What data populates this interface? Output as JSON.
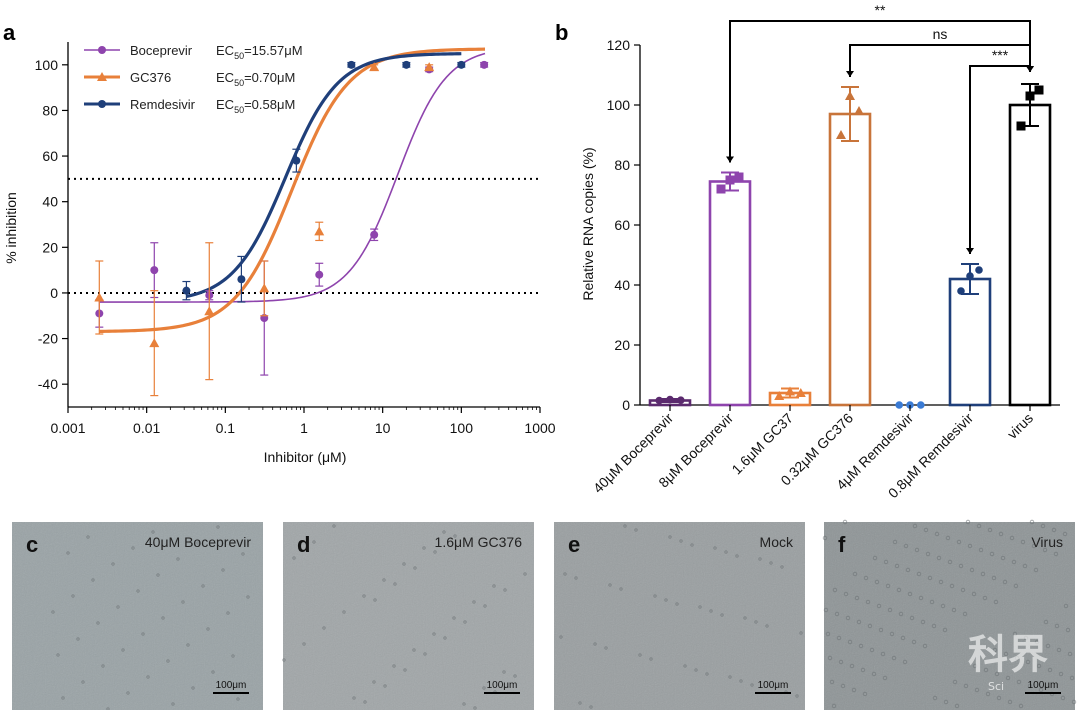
{
  "panel_a": {
    "letter": "a",
    "colors": {
      "boceprevir": "#8e44ad",
      "gc376": "#e8803a",
      "remdesivir": "#1f3f7a"
    },
    "legend": [
      {
        "key": "boceprevir",
        "name": "Boceprevir",
        "ec_prefix": "EC",
        "ec_sub": "50",
        "ec_value": "=15.57μM"
      },
      {
        "key": "gc376",
        "name": "GC376",
        "ec_prefix": "EC",
        "ec_sub": "50",
        "ec_value": "=0.70μM"
      },
      {
        "key": "remdesivir",
        "name": "Remdesivir",
        "ec_prefix": "EC",
        "ec_sub": "50",
        "ec_value": "=0.58μM"
      }
    ],
    "chart_data": {
      "type": "scatter",
      "xlabel": "Inhibitor (μM)",
      "ylabel": "% inhibition",
      "xscale": "log",
      "xlim": [
        0.001,
        1000
      ],
      "ylim": [
        -50,
        110
      ],
      "x_ticks": [
        "0.001",
        "0.01",
        "0.1",
        "1",
        "10",
        "100",
        "1000"
      ],
      "y_ticks": [
        "-40",
        "-20",
        "0",
        "20",
        "40",
        "60",
        "80",
        "100"
      ],
      "reference_lines": [
        50,
        0
      ],
      "series": [
        {
          "name": "Boceprevir",
          "key": "boceprevir",
          "marker": "circle",
          "curve": {
            "bottom": -4,
            "top": 108,
            "ec50": 15.57,
            "hill": 1.4,
            "x_range": [
              0.0025,
              200
            ]
          },
          "points": [
            {
              "x": 0.0025,
              "y": -9,
              "err": 6
            },
            {
              "x": 0.0125,
              "y": 10,
              "err": 12
            },
            {
              "x": 0.0625,
              "y": -1,
              "err": 2
            },
            {
              "x": 0.3125,
              "y": -11,
              "err": 25
            },
            {
              "x": 1.5625,
              "y": 8,
              "err": 5
            },
            {
              "x": 7.8,
              "y": 25.5,
              "err": 2.5
            },
            {
              "x": 39,
              "y": 98,
              "err": 1
            },
            {
              "x": 195,
              "y": 100,
              "err": 1
            }
          ]
        },
        {
          "name": "GC376",
          "key": "gc376",
          "marker": "triangle",
          "curve": {
            "bottom": -17,
            "top": 107,
            "ec50": 0.7,
            "hill": 1.2,
            "x_range": [
              0.0025,
              200
            ]
          },
          "points": [
            {
              "x": 0.0025,
              "y": -2,
              "err": 16
            },
            {
              "x": 0.0125,
              "y": -22,
              "err": 23
            },
            {
              "x": 0.0625,
              "y": -8,
              "err": 30
            },
            {
              "x": 0.3125,
              "y": 2,
              "err": 12
            },
            {
              "x": 1.5625,
              "y": 27,
              "err": 4
            },
            {
              "x": 7.8,
              "y": 99,
              "err": 1
            },
            {
              "x": 39,
              "y": 99,
              "err": 1
            }
          ]
        },
        {
          "name": "Remdesivir",
          "key": "remdesivir",
          "marker": "circle",
          "curve": {
            "bottom": -4,
            "top": 105,
            "ec50": 0.58,
            "hill": 1.3,
            "x_range": [
              0.032,
              100
            ]
          },
          "points": [
            {
              "x": 0.032,
              "y": 1,
              "err": 4
            },
            {
              "x": 0.16,
              "y": 6,
              "err": 10
            },
            {
              "x": 0.8,
              "y": 58,
              "err": 5
            },
            {
              "x": 4,
              "y": 100,
              "err": 1
            },
            {
              "x": 20,
              "y": 100,
              "err": 1
            },
            {
              "x": 100,
              "y": 100,
              "err": 1
            }
          ]
        }
      ]
    }
  },
  "panel_b": {
    "letter": "b",
    "chart_data": {
      "type": "bar",
      "ylabel": "Relative RNA copies (%)",
      "ylim": [
        0,
        120
      ],
      "y_ticks": [
        "0",
        "20",
        "40",
        "60",
        "80",
        "100",
        "120"
      ],
      "categories": [
        "40μM Boceprevir",
        "8μM Boceprevir",
        "1.6μM GC37",
        "0.32μM GC376",
        "4μM Remdesivir",
        "0.8μM Remdesivir",
        "virus"
      ],
      "values": [
        1.5,
        74.5,
        4,
        97,
        0,
        42,
        100
      ],
      "errors": [
        0.5,
        3,
        1.5,
        9,
        0,
        5,
        7
      ],
      "colors": [
        "#5b2a6e",
        "#8e44ad",
        "#e8803a",
        "#c8743a",
        "#3a7bd5",
        "#1f3f7a",
        "#000000"
      ],
      "markers": [
        "circle",
        "square",
        "triangle",
        "triangle",
        "circle",
        "circle",
        "square"
      ],
      "replicates": [
        [
          1.5,
          1.8,
          1.6
        ],
        [
          72,
          75,
          76
        ],
        [
          3,
          4.5,
          4
        ],
        [
          90,
          103,
          98
        ],
        [
          0,
          0,
          0
        ],
        [
          38,
          43,
          45
        ],
        [
          93,
          103,
          105
        ]
      ],
      "significance": [
        {
          "from": 1,
          "to": 6,
          "label": "**",
          "y": 128
        },
        {
          "from": 3,
          "to": 6,
          "label": "ns",
          "y": 120
        },
        {
          "from": 5,
          "to": 6,
          "label": "***",
          "y": 113
        }
      ]
    }
  },
  "micrographs": [
    {
      "letter": "c",
      "title": "40μM Boceprevir",
      "scale_label": "100μm",
      "tone": "#9aa3a6"
    },
    {
      "letter": "d",
      "title": "1.6μM GC376",
      "scale_label": "100μm",
      "tone": "#a1a6a8"
    },
    {
      "letter": "e",
      "title": "Mock",
      "scale_label": "100μm",
      "tone": "#9a9fa1"
    },
    {
      "letter": "f",
      "title": "Virus",
      "scale_label": "100μm",
      "tone": "#8f9597"
    }
  ],
  "watermark": {
    "main": "科界",
    "sub": "Sci"
  }
}
